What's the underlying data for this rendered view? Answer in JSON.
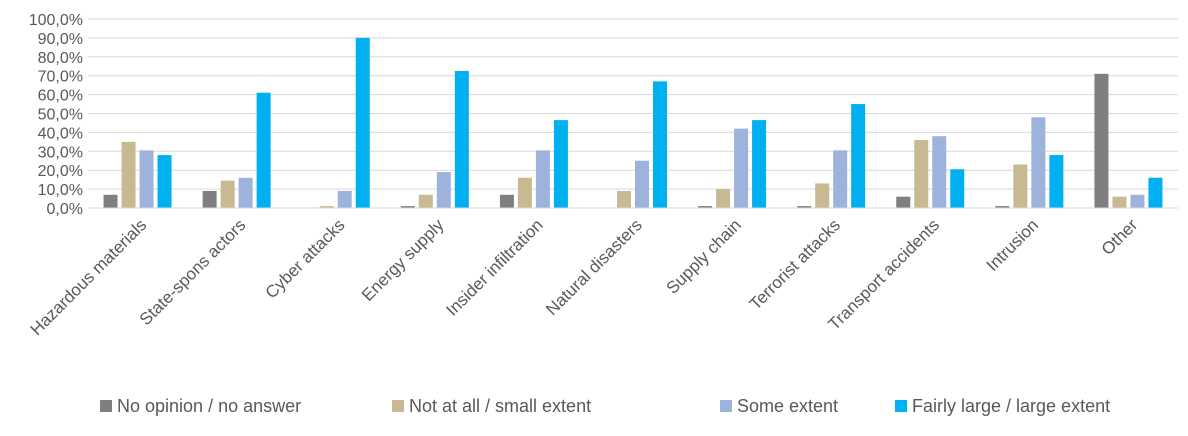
{
  "chart_data": {
    "type": "bar",
    "title": "",
    "xlabel": "",
    "ylabel": "",
    "ylim": [
      0,
      100
    ],
    "yticks": [
      "0,0%",
      "10,0%",
      "20,0%",
      "30,0%",
      "40,0%",
      "50,0%",
      "60,0%",
      "70,0%",
      "80,0%",
      "90,0%",
      "100,0%"
    ],
    "grid": true,
    "legend_position": "bottom",
    "categories": [
      "Hazardous materials",
      "State-spons actors",
      "Cyber attacks",
      "Energy supply",
      "Insider infiltration",
      "Natural disasters",
      "Supply chain",
      "Terrorist attacks",
      "Transport accidents",
      "Intrusion",
      "Other"
    ],
    "series": [
      {
        "name": "No opinion / no answer",
        "color": "#7f7f7f",
        "values": [
          7.0,
          9.0,
          0.0,
          1.0,
          7.0,
          0.0,
          1.0,
          1.0,
          6.0,
          1.0,
          71.0
        ]
      },
      {
        "name": "Not at all / small extent",
        "color": "#c9b993",
        "values": [
          35.0,
          14.5,
          1.0,
          7.0,
          16.0,
          9.0,
          10.0,
          13.0,
          36.0,
          23.0,
          6.0
        ]
      },
      {
        "name": "Some extent",
        "color": "#9db3dc",
        "values": [
          30.5,
          16.0,
          9.0,
          19.0,
          30.5,
          25.0,
          42.0,
          30.5,
          38.0,
          48.0,
          7.0
        ]
      },
      {
        "name": "Fairly large / large extent",
        "color": "#00b0f0",
        "values": [
          28.0,
          61.0,
          90.0,
          72.5,
          46.5,
          67.0,
          46.5,
          55.0,
          20.5,
          28.0,
          16.0
        ]
      }
    ]
  }
}
